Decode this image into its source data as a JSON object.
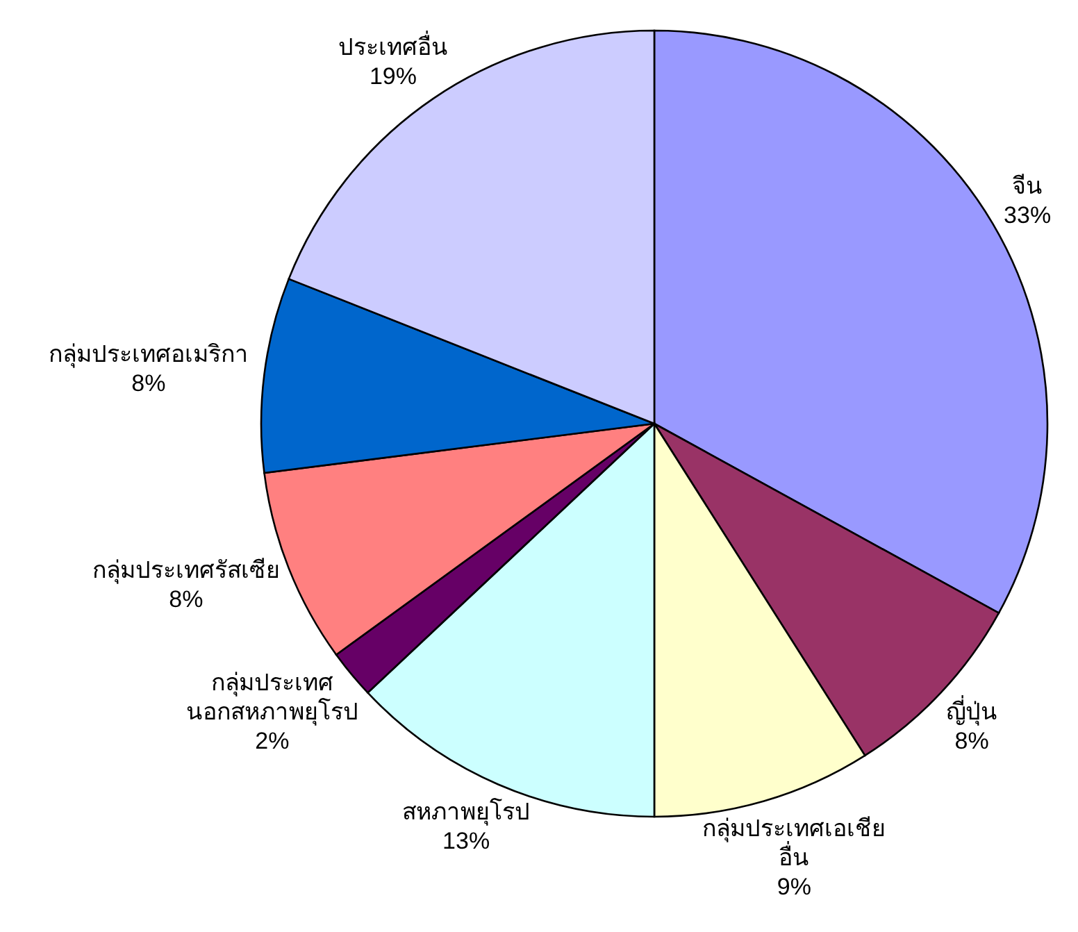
{
  "chart_data": {
    "type": "pie",
    "categories": [
      "จีน",
      "ญี่ปุ่น",
      "กลุ่มประเทศเอเชีย\nอื่น",
      "สหภาพยุโรป",
      "กลุ่มประเทศ\nนอกสหภาพยุโรป",
      "กลุ่มประเทศรัสเซีย",
      "กลุ่มประเทศอเมริกา",
      "ประเทศอื่น"
    ],
    "values": [
      33,
      8,
      9,
      13,
      2,
      8,
      8,
      19
    ],
    "colors": [
      "#9999ff",
      "#993366",
      "#ffffcc",
      "#ccffff",
      "#660066",
      "#ff8080",
      "#0066cc",
      "#ccccff"
    ],
    "value_labels": [
      "33%",
      "8%",
      "9%",
      "13%",
      "2%",
      "8%",
      "8%",
      "19%"
    ]
  }
}
